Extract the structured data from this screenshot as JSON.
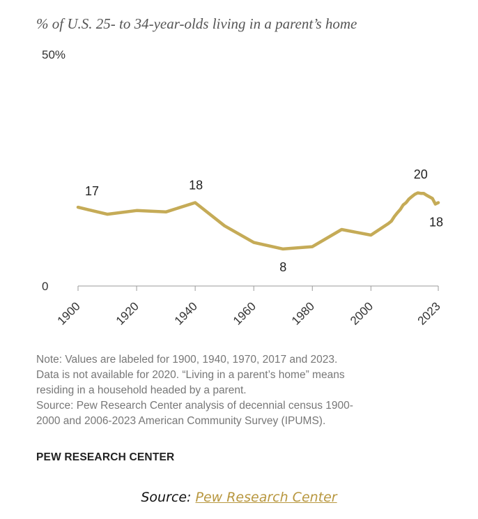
{
  "subtitle": "% of U.S. 25- to 34-year-olds living in a parent’s home",
  "chart_data": {
    "type": "line",
    "ylim": [
      0,
      50
    ],
    "y_ticks": [
      "0",
      "50%"
    ],
    "x_ticks": [
      "1900",
      "1920",
      "1940",
      "1960",
      "1980",
      "2000",
      "2023"
    ],
    "line_color": "#c5ab57",
    "series": [
      {
        "x": [
          1900,
          1910,
          1920,
          1930,
          1940,
          1950,
          1960,
          1970,
          1980,
          1990,
          2000,
          2006,
          2007,
          2008,
          2009,
          2010,
          2011,
          2012,
          2013,
          2014,
          2015,
          2016,
          2017,
          2018,
          2019,
          2021,
          2022,
          2023
        ],
        "y": [
          17,
          15.5,
          16.3,
          16,
          18,
          13,
          9.4,
          8,
          8.5,
          12.2,
          11,
          13.5,
          14,
          15,
          15.8,
          16.5,
          17.5,
          18,
          18.8,
          19.3,
          19.8,
          20.1,
          20,
          20,
          19.6,
          18.9,
          17.7,
          18
        ]
      }
    ],
    "data_labels": [
      {
        "x": 1900,
        "y": 17,
        "text": "17"
      },
      {
        "x": 1940,
        "y": 18,
        "text": "18"
      },
      {
        "x": 1970,
        "y": 8,
        "text": "8"
      },
      {
        "x": 2017,
        "y": 20,
        "text": "20"
      },
      {
        "x": 2023,
        "y": 18,
        "text": "18"
      }
    ]
  },
  "note_lines": [
    "Note: Values are labeled for 1900, 1940, 1970, 2017 and 2023.",
    "Data is not available for 2020. “Living in a parent’s home” means",
    "residing in a household headed by a parent.",
    "Source: Pew Research Center analysis of decennial census 1900-",
    "2000 and 2006-2023 American Community Survey (IPUMS)."
  ],
  "brand": "PEW RESEARCH CENTER",
  "source": {
    "prefix": "Source: ",
    "link_text": "Pew Research Center"
  }
}
